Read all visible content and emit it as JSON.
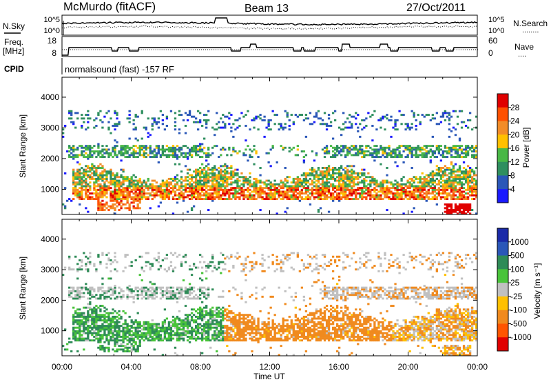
{
  "header": {
    "station": "McMurdo (fitACF)",
    "beam": "Beam 13",
    "date": "27/Oct/2011",
    "cpid_label": "CPID",
    "cpid_value": "normalsound (fast) -157 RF"
  },
  "noise_panel": {
    "left_label": "N.Sky",
    "right_label": "N.Search",
    "right_legend": "........",
    "left_ticks": [
      "10^5",
      "10^0"
    ],
    "right_ticks": [
      "10^5",
      "10^0"
    ]
  },
  "freq_panel": {
    "left_label_1": "Freq.",
    "left_label_2": "[MHz]",
    "right_label": "Nave",
    "right_legend": "....",
    "left_ticks": [
      "18",
      "8"
    ],
    "right_ticks": [
      "60",
      "0"
    ]
  },
  "colors": {
    "power": [
      "#1a1aff",
      "#2a57b8",
      "#2f8f5f",
      "#49b846",
      "#ffc000",
      "#f28c28",
      "#ff5000",
      "#e00000"
    ],
    "velocity": [
      "#e00000",
      "#ff5500",
      "#f08a1e",
      "#ffc000",
      "#c0c0c0",
      "#49c43a",
      "#2e8b57",
      "#2a57b8",
      "#1a2aa8"
    ]
  },
  "chart_data": [
    {
      "type": "heatmap",
      "name": "power",
      "title": "",
      "xlabel": "Time UT",
      "ylabel": "Slant Range [km]",
      "xlim": [
        "00:00",
        "24:00"
      ],
      "ylim": [
        180,
        4650
      ],
      "x_ticks": [
        "00:00",
        "04:00",
        "08:00",
        "12:00",
        "16:00",
        "20:00",
        "00:00"
      ],
      "y_ticks": [
        1000,
        2000,
        3000,
        4000
      ],
      "colorbar": {
        "label": "Power [dB]",
        "range": [
          0,
          32
        ],
        "ticks": [
          "4",
          "8",
          "12",
          "16",
          "20",
          "24",
          "28"
        ]
      },
      "features": [
        {
          "band": "main echo",
          "range_km": [
            700,
            1600
          ],
          "time_h": [
            0.5,
            24
          ],
          "peak_db": 28
        },
        {
          "band": "upper echo",
          "range_km": [
            2000,
            2500
          ],
          "time_h": [
            0.3,
            24
          ],
          "peak_db": 16
        },
        {
          "band": "far echo",
          "range_km": [
            3000,
            3500
          ],
          "time_h": [
            0.3,
            24
          ],
          "peak_db": 12
        }
      ]
    },
    {
      "type": "heatmap",
      "name": "velocity",
      "title": "",
      "xlabel": "Time UT",
      "ylabel": "Slant Range [km]",
      "xlim": [
        "00:00",
        "24:00"
      ],
      "ylim": [
        180,
        4650
      ],
      "x_ticks": [
        "00:00",
        "04:00",
        "08:00",
        "12:00",
        "16:00",
        "20:00",
        "00:00"
      ],
      "y_ticks": [
        1000,
        2000,
        3000,
        4000
      ],
      "colorbar": {
        "label": "Velocity [m s⁻¹]",
        "ticks": [
          "1000",
          "500",
          "100",
          "25",
          "-25",
          "-100",
          "-500",
          "-1000"
        ]
      },
      "features": [
        {
          "band": "positive flow",
          "time_h": [
            0.5,
            9.3
          ],
          "range_km": [
            700,
            1600
          ],
          "velocity_ms": 300
        },
        {
          "band": "negative flow",
          "time_h": [
            9.3,
            19
          ],
          "range_km": [
            700,
            2000
          ],
          "velocity_ms": -200
        }
      ]
    }
  ]
}
